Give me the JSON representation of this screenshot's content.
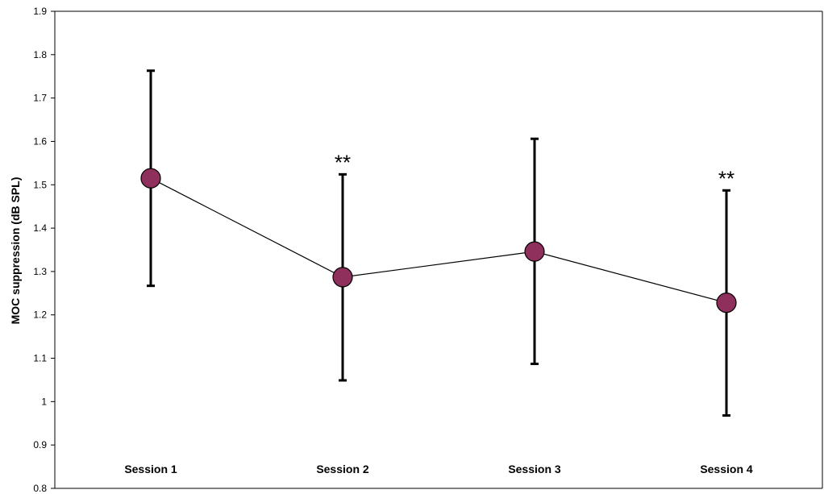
{
  "chart_data": {
    "type": "line",
    "ylabel": "MOC suppression (dB SPL)",
    "ylim": [
      0.8,
      1.9
    ],
    "yticks": [
      "0.8",
      "0.9",
      "1",
      "1.1",
      "1.2",
      "1.3",
      "1.4",
      "1.5",
      "1.6",
      "1.7",
      "1.8",
      "1.9"
    ],
    "categories": [
      "Session 1",
      "Session 2",
      "Session 3",
      "Session 4"
    ],
    "values": [
      1.515,
      1.287,
      1.346,
      1.228
    ],
    "error_high": [
      1.763,
      1.524,
      1.606,
      1.487
    ],
    "error_low": [
      1.267,
      1.049,
      1.087,
      0.968
    ],
    "annotations": [
      "",
      "**",
      "",
      "**"
    ],
    "grid": false,
    "colors": {
      "marker": "#8e2f5c",
      "line": "#000000"
    }
  }
}
